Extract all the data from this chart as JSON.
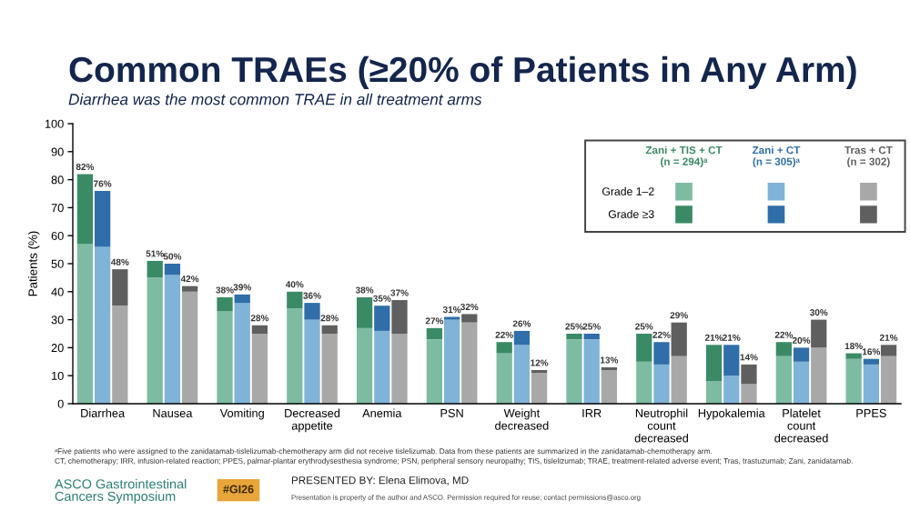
{
  "chart_data": {
    "type": "bar",
    "stacked": true,
    "title": "Common TRAEs (≥20% of Patients in Any Arm)",
    "subtitle": "Diarrhea was the most common TRAE in all treatment arms",
    "ylabel": "Patients (%)",
    "categories": [
      null,
      "Diarrhea",
      null,
      null,
      null,
      "Nausea",
      null,
      null,
      null,
      "Vomiting",
      null,
      null,
      null,
      "Decreased\nappetite",
      null,
      null,
      null,
      "Anemia",
      null,
      null,
      null,
      "PSN",
      null,
      null,
      null,
      "Weight\ndecreased",
      null,
      null,
      null,
      "IRR",
      null,
      null,
      null,
      "Neutrophil\ncount\ndecreased",
      null,
      null,
      null,
      "Hypokalemia",
      null,
      null,
      null,
      "Platelet\ncount\ndecreased",
      null,
      null,
      null,
      "PPES",
      null
    ],
    "series": [
      {
        "name": "Grade 1–2",
        "colors": [
          "#7dbca2",
          "#80b3d8",
          "#a8a8a8",
          null,
          "#7dbca2",
          "#80b3d8",
          "#a8a8a8",
          null,
          "#7dbca2",
          "#80b3d8",
          "#a8a8a8",
          null,
          "#7dbca2",
          "#80b3d8",
          "#a8a8a8",
          null,
          "#7dbca2",
          "#80b3d8",
          "#a8a8a8",
          null,
          "#7dbca2",
          "#80b3d8",
          "#a8a8a8",
          null,
          "#7dbca2",
          "#80b3d8",
          "#a8a8a8",
          null,
          "#7dbca2",
          "#80b3d8",
          "#a8a8a8",
          null,
          "#7dbca2",
          "#80b3d8",
          "#a8a8a8",
          null,
          "#7dbca2",
          "#80b3d8",
          "#a8a8a8",
          null,
          "#7dbca2",
          "#80b3d8",
          "#a8a8a8",
          null,
          "#7dbca2",
          "#80b3d8",
          "#a8a8a8"
        ],
        "values": [
          57,
          56,
          35,
          null,
          45,
          46,
          40,
          null,
          33,
          36,
          25,
          null,
          34,
          30,
          25,
          null,
          27,
          26,
          25,
          null,
          23,
          30,
          29,
          null,
          18,
          21,
          11,
          null,
          23,
          23,
          12,
          null,
          15,
          14,
          17,
          null,
          8,
          10,
          7,
          null,
          17,
          15,
          20,
          null,
          16,
          14,
          17
        ]
      },
      {
        "name": "Grade ≥3",
        "colors": [
          "#3a8a66",
          "#2f6ea8",
          "#5f5f5f",
          null,
          "#3a8a66",
          "#2f6ea8",
          "#5f5f5f",
          null,
          "#3a8a66",
          "#2f6ea8",
          "#5f5f5f",
          null,
          "#3a8a66",
          "#2f6ea8",
          "#5f5f5f",
          null,
          "#3a8a66",
          "#2f6ea8",
          "#5f5f5f",
          null,
          "#3a8a66",
          "#2f6ea8",
          "#5f5f5f",
          null,
          "#3a8a66",
          "#2f6ea8",
          "#5f5f5f",
          null,
          "#3a8a66",
          "#2f6ea8",
          "#5f5f5f",
          null,
          "#3a8a66",
          "#2f6ea8",
          "#5f5f5f",
          null,
          "#3a8a66",
          "#2f6ea8",
          "#5f5f5f",
          null,
          "#3a8a66",
          "#2f6ea8",
          "#5f5f5f",
          null,
          "#3a8a66",
          "#2f6ea8",
          "#5f5f5f"
        ],
        "values": [
          25,
          20,
          13,
          null,
          6,
          4,
          2,
          null,
          5,
          3,
          3,
          null,
          6,
          6,
          3,
          null,
          11,
          9,
          12,
          null,
          4,
          1,
          3,
          null,
          4,
          5,
          1,
          null,
          2,
          2,
          1,
          null,
          10,
          8,
          12,
          null,
          13,
          11,
          7,
          null,
          5,
          5,
          10,
          null,
          2,
          2,
          4
        ]
      }
    ],
    "totals": [
      "82%",
      "76%",
      "48%",
      null,
      "51%",
      "50%",
      "42%",
      null,
      "38%",
      "39%",
      "28%",
      null,
      "40%",
      "36%",
      "28%",
      null,
      "38%",
      "35%",
      "37%",
      null,
      "27%",
      "31%",
      "32%",
      null,
      "22%",
      "26%",
      "12%",
      null,
      "25%",
      "25%",
      "13%",
      null,
      "25%",
      "22%",
      "29%",
      null,
      "21%",
      "21%",
      "14%",
      null,
      "22%",
      "20%",
      "30%",
      null,
      "18%",
      "16%",
      "21%"
    ],
    "ylim": [
      0,
      100
    ],
    "yticks": [
      0,
      10,
      20,
      30,
      40,
      50,
      60,
      70,
      80,
      90,
      100
    ],
    "legend": "top right",
    "annotations": [
      "Zani + TIS + CT\n(n = 294)ᵃ",
      "Zani + CT\n(n = 305)ᵃ",
      "Tras + CT\n(n = 302)",
      "ᵃFive patients who were assigned to the zanidatamab-tislelizumab-chemotherapy arm did not receive tislelizumab. Data from these patients are summarized in the zanidatamab-chemotherapy arm.",
      "CT, chemotherapy; IRR, infusion-related reaction; PPES, palmar-plantar erythrodysesthesia syndrome; PSN, peripheral sensory neuropathy; TIS, tislelizumab; TRAE, treatment-related adverse event; Tras, trastuzumab; Zani, zanidatamab.",
      "ASCO Gastrointestinal\nCancers Symposium",
      "#GI26",
      "PRESENTED BY: Elena Elimova, MD",
      "Presentation is property of the author and ASCO. Permission required for reuse; contact permissions@asco.org"
    ]
  }
}
